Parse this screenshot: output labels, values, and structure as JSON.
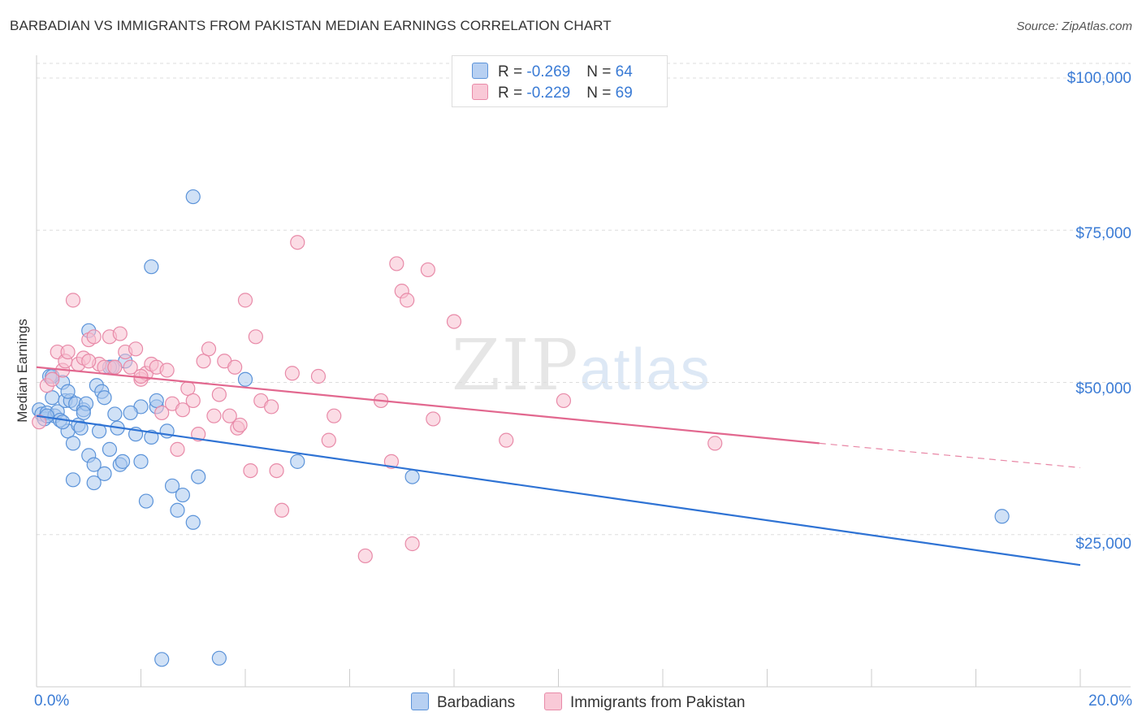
{
  "title": "BARBADIAN VS IMMIGRANTS FROM PAKISTAN MEDIAN EARNINGS CORRELATION CHART",
  "source": "Source: ZipAtlas.com",
  "watermark": {
    "zip": "ZIP",
    "atlas": "atlas"
  },
  "legend": {
    "rows": [
      {
        "r_label": "R = ",
        "r_value": "-0.269",
        "n_label": "N = ",
        "n_value": "64"
      },
      {
        "r_label": "R = ",
        "r_value": "-0.229",
        "n_label": "N = ",
        "n_value": "69"
      }
    ]
  },
  "bottom_legend": {
    "barbadians": "Barbadians",
    "pakistan": "Immigrants from Pakistan"
  },
  "colors": {
    "blue_fill": "#a9c8ef",
    "blue_stroke": "#5b93d9",
    "blue_line": "#2f73d4",
    "pink_fill": "#f7bfd0",
    "pink_stroke": "#e88aa8",
    "pink_line": "#e2688f",
    "axis_text": "#3a7bd5",
    "grid": "#dddddd"
  },
  "chart_data": {
    "type": "scatter",
    "title": "BARBADIAN VS IMMIGRANTS FROM PAKISTAN MEDIAN EARNINGS CORRELATION CHART",
    "xlabel": "",
    "ylabel": "Median Earnings",
    "xlim": [
      0,
      20
    ],
    "ylim": [
      0,
      102000
    ],
    "x_tick_labels": [
      "0.0%",
      "20.0%"
    ],
    "y_ticks": [
      25000,
      50000,
      75000,
      100000
    ],
    "y_tick_labels": [
      "$25,000",
      "$50,000",
      "$75,000",
      "$100,000"
    ],
    "series": [
      {
        "name": "Barbadians",
        "r": -0.269,
        "n": 64,
        "trend": {
          "x": [
            0,
            20
          ],
          "y": [
            44500,
            20000
          ]
        },
        "points": [
          [
            0.05,
            45500
          ],
          [
            0.1,
            44800
          ],
          [
            0.15,
            44000
          ],
          [
            0.2,
            45000
          ],
          [
            0.25,
            51000
          ],
          [
            0.3,
            47500
          ],
          [
            0.35,
            44500
          ],
          [
            0.4,
            45200
          ],
          [
            0.45,
            43800
          ],
          [
            0.5,
            50000
          ],
          [
            0.55,
            47000
          ],
          [
            0.6,
            42000
          ],
          [
            0.65,
            47000
          ],
          [
            0.7,
            40000
          ],
          [
            0.75,
            46500
          ],
          [
            0.8,
            43000
          ],
          [
            0.85,
            42500
          ],
          [
            0.9,
            45500
          ],
          [
            0.95,
            46500
          ],
          [
            1.0,
            38000
          ],
          [
            1.1,
            36500
          ],
          [
            1.15,
            49500
          ],
          [
            1.2,
            42000
          ],
          [
            1.25,
            48500
          ],
          [
            1.3,
            35000
          ],
          [
            1.4,
            39000
          ],
          [
            1.45,
            52500
          ],
          [
            1.5,
            44800
          ],
          [
            1.55,
            42500
          ],
          [
            1.6,
            36500
          ],
          [
            1.65,
            37000
          ],
          [
            1.7,
            53500
          ],
          [
            1.9,
            41500
          ],
          [
            2.0,
            37000
          ],
          [
            2.0,
            46000
          ],
          [
            2.1,
            30500
          ],
          [
            2.2,
            41000
          ],
          [
            2.3,
            46000
          ],
          [
            2.3,
            47000
          ],
          [
            2.6,
            33000
          ],
          [
            2.7,
            29000
          ],
          [
            2.8,
            31500
          ],
          [
            3.0,
            27000
          ],
          [
            3.1,
            34500
          ],
          [
            0.7,
            34000
          ],
          [
            1.1,
            33500
          ],
          [
            1.0,
            58500
          ],
          [
            1.4,
            52500
          ],
          [
            2.2,
            69000
          ],
          [
            3.0,
            80500
          ],
          [
            4.0,
            50500
          ],
          [
            5.0,
            37000
          ],
          [
            7.2,
            34500
          ],
          [
            2.4,
            4500
          ],
          [
            3.5,
            4700
          ],
          [
            18.5,
            28000
          ],
          [
            0.3,
            51000
          ],
          [
            0.6,
            48500
          ],
          [
            0.9,
            45000
          ],
          [
            1.3,
            47500
          ],
          [
            0.2,
            44500
          ],
          [
            0.5,
            43500
          ],
          [
            1.8,
            45000
          ],
          [
            2.5,
            42000
          ]
        ]
      },
      {
        "name": "Immigrants from Pakistan",
        "r": -0.229,
        "n": 69,
        "trend": {
          "x": [
            0,
            15
          ],
          "y": [
            52500,
            40000
          ]
        },
        "trend_dashed": {
          "x": [
            15,
            20
          ],
          "y": [
            40000,
            36000
          ]
        },
        "points": [
          [
            0.05,
            43500
          ],
          [
            0.2,
            49500
          ],
          [
            0.3,
            50500
          ],
          [
            0.4,
            55000
          ],
          [
            0.5,
            52000
          ],
          [
            0.55,
            53500
          ],
          [
            0.6,
            55000
          ],
          [
            0.8,
            53000
          ],
          [
            0.9,
            54000
          ],
          [
            1.0,
            57000
          ],
          [
            1.1,
            57500
          ],
          [
            1.2,
            53000
          ],
          [
            1.3,
            52500
          ],
          [
            1.4,
            57500
          ],
          [
            1.5,
            52500
          ],
          [
            1.6,
            58000
          ],
          [
            1.7,
            55000
          ],
          [
            1.8,
            52500
          ],
          [
            1.9,
            55500
          ],
          [
            2.0,
            50500
          ],
          [
            2.1,
            51500
          ],
          [
            2.2,
            53000
          ],
          [
            2.3,
            52500
          ],
          [
            2.4,
            45000
          ],
          [
            2.5,
            52000
          ],
          [
            2.6,
            46500
          ],
          [
            2.7,
            39000
          ],
          [
            2.8,
            45500
          ],
          [
            2.9,
            49000
          ],
          [
            3.0,
            47000
          ],
          [
            3.1,
            41500
          ],
          [
            3.2,
            53500
          ],
          [
            3.3,
            55500
          ],
          [
            3.4,
            44500
          ],
          [
            3.5,
            48000
          ],
          [
            3.6,
            53500
          ],
          [
            3.7,
            44500
          ],
          [
            3.8,
            52500
          ],
          [
            3.85,
            42500
          ],
          [
            3.9,
            43000
          ],
          [
            4.0,
            63500
          ],
          [
            4.1,
            35500
          ],
          [
            4.2,
            57500
          ],
          [
            4.3,
            47000
          ],
          [
            4.5,
            46000
          ],
          [
            4.6,
            35500
          ],
          [
            4.7,
            29000
          ],
          [
            4.9,
            51500
          ],
          [
            5.0,
            73000
          ],
          [
            5.4,
            51000
          ],
          [
            5.6,
            40500
          ],
          [
            5.7,
            44500
          ],
          [
            6.3,
            21500
          ],
          [
            6.6,
            47000
          ],
          [
            6.8,
            37000
          ],
          [
            6.9,
            69500
          ],
          [
            7.0,
            65000
          ],
          [
            7.1,
            63500
          ],
          [
            7.2,
            23500
          ],
          [
            7.5,
            68500
          ],
          [
            7.6,
            44000
          ],
          [
            8.0,
            60000
          ],
          [
            9.0,
            40500
          ],
          [
            10.1,
            47000
          ],
          [
            13.0,
            40000
          ],
          [
            0.7,
            63500
          ],
          [
            1.0,
            53500
          ],
          [
            1.5,
            52500
          ],
          [
            2.0,
            51000
          ]
        ]
      }
    ]
  }
}
